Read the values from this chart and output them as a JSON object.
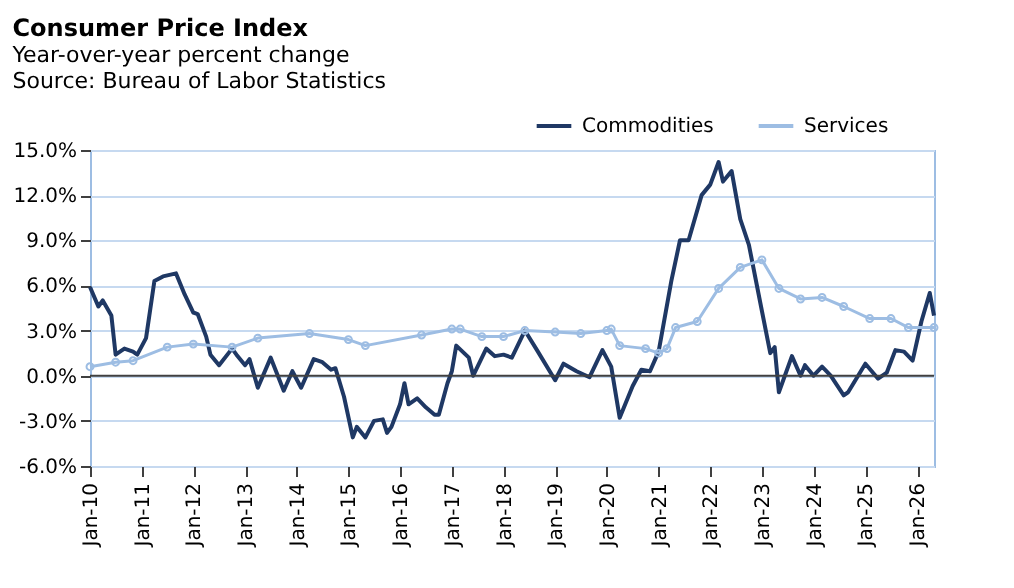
{
  "chart_data": {
    "type": "line",
    "title": "Consumer Price Index",
    "subtitle": "Year-over-year percent change",
    "annotations": [
      "Source: Bureau of Labor Statistics"
    ],
    "xlim": [
      "2010-01",
      "2026-05"
    ],
    "xticks": [
      {
        "value": "2010-01",
        "label": "Jan-10"
      },
      {
        "value": "2011-01",
        "label": "Jan-11"
      },
      {
        "value": "2012-01",
        "label": "Jan-12"
      },
      {
        "value": "2013-01",
        "label": "Jan-13"
      },
      {
        "value": "2014-01",
        "label": "Jan-14"
      },
      {
        "value": "2015-01",
        "label": "Jan-15"
      },
      {
        "value": "2016-01",
        "label": "Jan-16"
      },
      {
        "value": "2017-01",
        "label": "Jan-17"
      },
      {
        "value": "2018-01",
        "label": "Jan-18"
      },
      {
        "value": "2019-01",
        "label": "Jan-19"
      },
      {
        "value": "2020-01",
        "label": "Jan-20"
      },
      {
        "value": "2021-01",
        "label": "Jan-21"
      },
      {
        "value": "2022-01",
        "label": "Jan-22"
      },
      {
        "value": "2023-01",
        "label": "Jan-23"
      },
      {
        "value": "2024-01",
        "label": "Jan-24"
      },
      {
        "value": "2025-01",
        "label": "Jan-25"
      },
      {
        "value": "2026-01",
        "label": "Jan-26"
      }
    ],
    "ylim": [
      -6,
      15
    ],
    "yticks": [
      {
        "value": -6,
        "label": "-6.0%"
      },
      {
        "value": -3,
        "label": "-3.0%"
      },
      {
        "value": 0,
        "label": "0.0%"
      },
      {
        "value": 3,
        "label": "3.0%"
      },
      {
        "value": 6,
        "label": "6.0%"
      },
      {
        "value": 9,
        "label": "9.0%"
      },
      {
        "value": 12,
        "label": "12.0%"
      },
      {
        "value": 15,
        "label": "15.0%"
      }
    ],
    "grid": "y",
    "legend": "top right",
    "ref_lines": [
      {
        "axis": "y",
        "value": 0,
        "color": "#404040"
      }
    ],
    "series": [
      {
        "name": "Commodities",
        "color": "#1f3864",
        "marker": "none",
        "x": [
          "2010-01",
          "2010-03",
          "2010-04",
          "2010-06",
          "2010-07",
          "2010-09",
          "2010-11",
          "2010-12",
          "2011-02",
          "2011-04",
          "2011-06",
          "2011-09",
          "2011-11",
          "2012-01",
          "2012-02",
          "2012-04",
          "2012-05",
          "2012-07",
          "2012-10",
          "2012-11",
          "2013-01",
          "2013-02",
          "2013-04",
          "2013-07",
          "2013-10",
          "2013-12",
          "2014-02",
          "2014-05",
          "2014-07",
          "2014-09",
          "2014-10",
          "2014-12",
          "2015-02",
          "2015-03",
          "2015-05",
          "2015-07",
          "2015-09",
          "2015-10",
          "2015-11",
          "2016-01",
          "2016-02",
          "2016-03",
          "2016-05",
          "2016-07",
          "2016-09",
          "2016-10",
          "2016-12",
          "2017-01",
          "2017-02",
          "2017-05",
          "2017-06",
          "2017-09",
          "2017-11",
          "2018-01",
          "2018-03",
          "2018-06",
          "2018-09",
          "2019-01",
          "2019-03",
          "2019-06",
          "2019-09",
          "2019-12",
          "2020-02",
          "2020-04",
          "2020-07",
          "2020-09",
          "2020-11",
          "2021-01",
          "2021-04",
          "2021-06",
          "2021-08",
          "2021-11",
          "2022-01",
          "2022-03",
          "2022-04",
          "2022-06",
          "2022-08",
          "2022-10",
          "2023-01",
          "2023-03",
          "2023-04",
          "2023-05",
          "2023-08",
          "2023-10",
          "2023-11",
          "2024-01",
          "2024-03",
          "2024-05",
          "2024-08",
          "2024-09",
          "2025-01",
          "2025-04",
          "2025-06",
          "2025-08",
          "2025-10",
          "2025-12",
          "2026-02",
          "2026-04",
          "2026-05"
        ],
        "values": [
          5.9,
          4.6,
          5.0,
          4.0,
          1.4,
          1.8,
          1.6,
          1.4,
          2.5,
          6.3,
          6.6,
          6.8,
          5.4,
          4.2,
          4.1,
          2.6,
          1.4,
          0.7,
          1.8,
          1.4,
          0.7,
          1.1,
          -0.8,
          1.2,
          -1.0,
          0.3,
          -0.8,
          1.1,
          0.9,
          0.4,
          0.5,
          -1.4,
          -4.1,
          -3.4,
          -4.1,
          -3.0,
          -2.9,
          -3.8,
          -3.4,
          -1.9,
          -0.5,
          -1.9,
          -1.5,
          -2.1,
          -2.6,
          -2.6,
          -0.5,
          0.3,
          2.0,
          1.2,
          0.0,
          1.8,
          1.3,
          1.4,
          1.2,
          3.0,
          1.6,
          -0.3,
          0.8,
          0.3,
          -0.1,
          1.7,
          0.6,
          -2.8,
          -0.7,
          0.4,
          0.3,
          1.6,
          6.3,
          9.0,
          9.0,
          12.0,
          12.7,
          14.2,
          12.9,
          13.6,
          10.4,
          8.7,
          4.3,
          1.5,
          1.9,
          -1.1,
          1.3,
          0.0,
          0.7,
          0.0,
          0.6,
          0.0,
          -1.3,
          -1.1,
          0.8,
          -0.2,
          0.2,
          1.7,
          1.6,
          1.0,
          3.6,
          5.5,
          4.0
        ]
      },
      {
        "name": "Services",
        "color": "#9dbde3",
        "marker": "circle",
        "x": [
          "2010-01",
          "2010-07",
          "2010-11",
          "2011-07",
          "2012-01",
          "2012-10",
          "2013-04",
          "2014-04",
          "2015-01",
          "2015-05",
          "2016-06",
          "2017-01",
          "2017-03",
          "2017-08",
          "2018-01",
          "2018-06",
          "2019-01",
          "2019-07",
          "2020-01",
          "2020-02",
          "2020-04",
          "2020-10",
          "2021-01",
          "2021-03",
          "2021-05",
          "2021-10",
          "2022-03",
          "2022-08",
          "2023-01",
          "2023-05",
          "2023-10",
          "2024-03",
          "2024-08",
          "2025-02",
          "2025-07",
          "2025-11",
          "2026-05"
        ],
        "values": [
          0.6,
          0.9,
          1.0,
          1.9,
          2.1,
          1.9,
          2.5,
          2.8,
          2.4,
          2.0,
          2.7,
          3.1,
          3.1,
          2.6,
          2.6,
          3.0,
          2.9,
          2.8,
          3.0,
          3.1,
          2.0,
          1.8,
          1.5,
          1.8,
          3.2,
          3.6,
          5.8,
          7.2,
          7.7,
          5.8,
          5.1,
          5.2,
          4.6,
          3.8,
          3.8,
          3.2,
          3.2
        ]
      }
    ]
  }
}
